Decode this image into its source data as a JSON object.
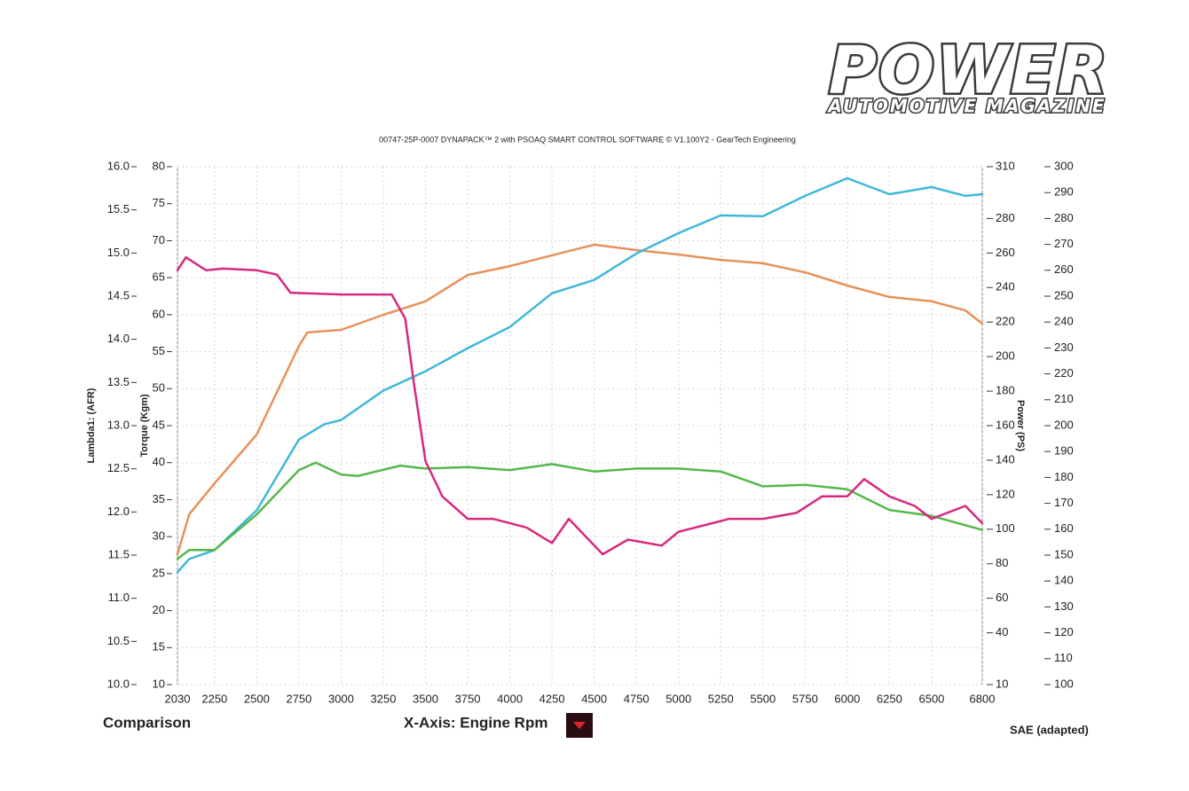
{
  "brand": {
    "name": "POWER",
    "tagline": "AUTOMOTIVE MAGAZINE"
  },
  "footer": {
    "left": "Comparison",
    "right": "SAE (adapted)"
  },
  "chart_data": {
    "type": "line",
    "title": "00747-25P-0007 DYNAPACK™ 2 with PSOAQ SMART CONTROL SOFTWARE © V1.100Y2 - GearTech Engineering",
    "xlabel": "X-Axis: Engine Rpm",
    "ylabel": "Torque (Kgm)",
    "y2label": "Power (PS)",
    "y3label": "Lambda1: (AFR)",
    "xlim": [
      2030,
      6800
    ],
    "xticks": [
      2030,
      2250,
      2500,
      2750,
      3000,
      3250,
      3500,
      3750,
      4000,
      4250,
      4500,
      4750,
      5000,
      5250,
      5500,
      5750,
      6000,
      6250,
      6500,
      6800
    ],
    "ylim": [
      10,
      80
    ],
    "yticks": [
      10,
      15,
      20,
      25,
      30,
      35,
      40,
      45,
      50,
      55,
      60,
      65,
      70,
      75,
      80
    ],
    "y2lim": [
      10,
      310
    ],
    "y2ticks": [
      10,
      40,
      60,
      80,
      100,
      120,
      140,
      160,
      180,
      200,
      220,
      240,
      260,
      280,
      310
    ],
    "y3lim": [
      10,
      16
    ],
    "y3ticks": [
      {
        "value": 10,
        "label": "10.0"
      },
      10.5,
      {
        "value": 11,
        "label": "11.0"
      },
      11.5,
      {
        "value": 12,
        "label": "12.0"
      },
      12.5,
      {
        "value": 13,
        "label": "13.0"
      },
      13.5,
      {
        "value": 14,
        "label": "14.0"
      },
      14.5,
      {
        "value": 15,
        "label": "15.0"
      },
      15.5,
      {
        "value": 16,
        "label": "16.0"
      }
    ],
    "y4lim": [
      100,
      300
    ],
    "y4ticks": [
      100,
      110,
      120,
      130,
      140,
      150,
      160,
      170,
      180,
      190,
      200,
      210,
      220,
      230,
      240,
      250,
      260,
      270,
      280,
      290,
      300
    ],
    "grid": true,
    "series": [
      {
        "color": "#e8915a",
        "axis": "y4",
        "x": [
          2030,
          2100,
          2250,
          2500,
          2750,
          2800,
          3000,
          3250,
          3500,
          3750,
          4000,
          4250,
          4500,
          4750,
          5000,
          5250,
          5500,
          5750,
          6000,
          6250,
          6500,
          6700,
          6800
        ],
        "values": [
          150.3,
          165.8,
          177.7,
          196.6,
          230.8,
          236,
          237,
          242.8,
          248,
          258.2,
          261.6,
          265.8,
          269.9,
          267.8,
          266.1,
          264,
          262.7,
          259.2,
          254.1,
          249.7,
          248,
          244.5,
          239.4
        ]
      },
      {
        "color": "#3fb8d8",
        "axis": "y2",
        "x": [
          2030,
          2100,
          2250,
          2500,
          2750,
          2900,
          3000,
          3250,
          3500,
          3750,
          4000,
          4250,
          4500,
          4750,
          5000,
          5250,
          5500,
          5750,
          6000,
          6250,
          6500,
          6700,
          6800
        ],
        "values": [
          75.1,
          82.8,
          87.9,
          111,
          152,
          160.8,
          163.3,
          180.3,
          191.5,
          204.9,
          217.2,
          236.7,
          244.4,
          259.7,
          271.5,
          281.8,
          281.3,
          293.1,
          303.3,
          294.1,
          298.2,
          293.1,
          294.1
        ]
      },
      {
        "color": "#55b84a",
        "axis": "y",
        "x": [
          2030,
          2100,
          2250,
          2500,
          2750,
          2850,
          3000,
          3100,
          3350,
          3500,
          3750,
          4000,
          4250,
          4500,
          4750,
          5000,
          5250,
          5500,
          5750,
          6000,
          6250,
          6500,
          6800
        ],
        "values": [
          27.0,
          28.2,
          28.2,
          33.0,
          39.0,
          40.0,
          38.4,
          38.2,
          39.6,
          39.2,
          39.4,
          39.0,
          39.8,
          38.8,
          39.2,
          39.2,
          38.8,
          36.8,
          37.0,
          36.4,
          33.6,
          32.8,
          30.9
        ]
      },
      {
        "color": "#d6297f",
        "axis": "y3",
        "x": [
          2030,
          2080,
          2200,
          2300,
          2500,
          2620,
          2700,
          3000,
          3300,
          3380,
          3430,
          3500,
          3600,
          3750,
          3900,
          4100,
          4250,
          4350,
          4550,
          4700,
          4900,
          5000,
          5200,
          5300,
          5500,
          5700,
          5850,
          6000,
          6100,
          6250,
          6400,
          6500,
          6700,
          6800
        ],
        "values": [
          14.8,
          14.95,
          14.8,
          14.82,
          14.8,
          14.75,
          14.54,
          14.52,
          14.52,
          14.24,
          13.51,
          12.59,
          12.18,
          11.92,
          11.92,
          11.82,
          11.64,
          11.92,
          11.51,
          11.68,
          11.61,
          11.77,
          11.87,
          11.92,
          11.92,
          11.99,
          12.18,
          12.18,
          12.38,
          12.18,
          12.07,
          11.92,
          12.07,
          11.87
        ]
      }
    ]
  }
}
